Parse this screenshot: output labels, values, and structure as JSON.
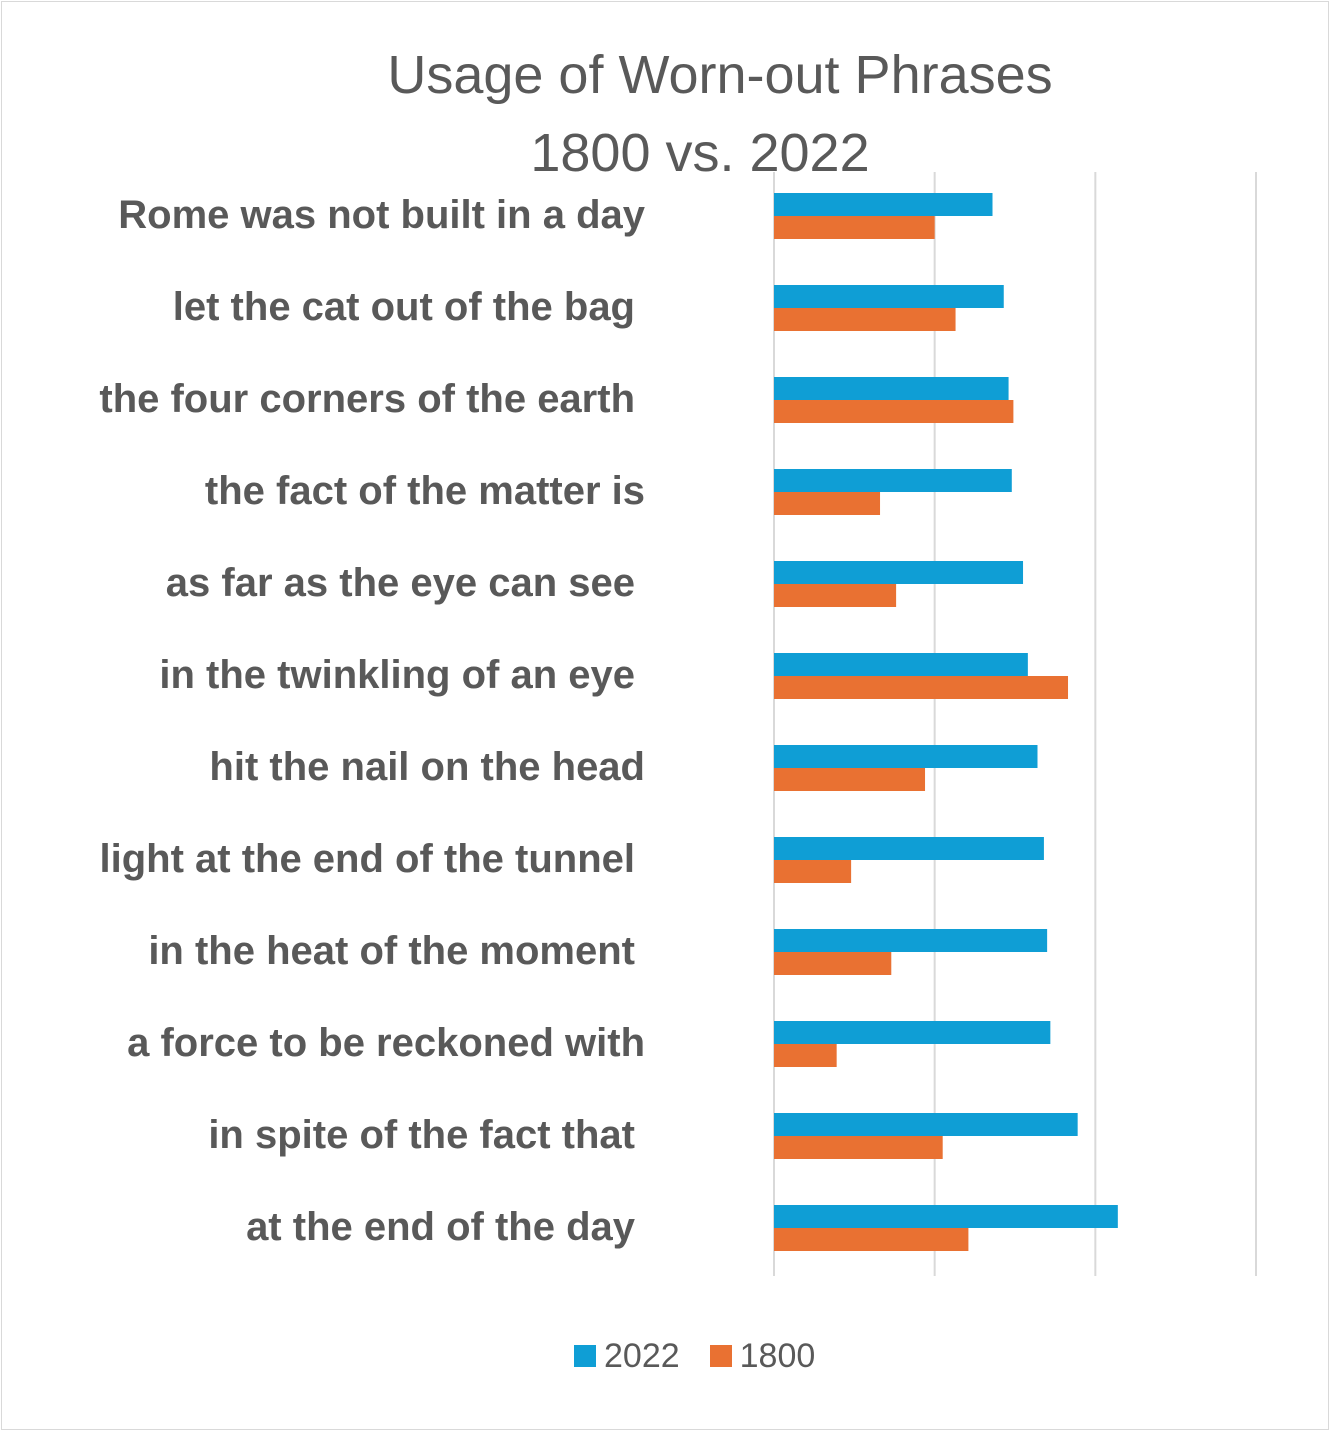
{
  "chart_data": {
    "type": "bar",
    "orientation": "horizontal",
    "title": "Usage of Worn-out Phrases",
    "subtitle": "1800 vs. 2022",
    "categories": [
      "Rome was not built in a day",
      "let the cat out of the bag",
      "the four corners of the earth",
      "the fact of the matter is",
      "as far as the eye can see",
      "in the twinkling of an eye",
      "hit the nail on the head",
      "light at the end of the tunnel",
      "in the heat of the moment",
      "a force to be reckoned with",
      "in spite of the fact that",
      "at the end of the day"
    ],
    "series": [
      {
        "name": "2022",
        "color": "#0f9ed5",
        "values": [
          68,
          71.5,
          73,
          74,
          77.5,
          79,
          82,
          84,
          85,
          86,
          94.5,
          107
        ]
      },
      {
        "name": "1800",
        "color": "#e97132",
        "values": [
          50,
          56.5,
          74.5,
          33,
          38,
          91.5,
          47,
          24,
          36.5,
          19.5,
          52.5,
          60.5
        ]
      }
    ],
    "xlim": [
      0,
      150
    ],
    "gridlines": [
      0,
      50,
      100,
      150
    ],
    "legend_position": "bottom",
    "grid": true,
    "tick_labels_visible": false
  }
}
